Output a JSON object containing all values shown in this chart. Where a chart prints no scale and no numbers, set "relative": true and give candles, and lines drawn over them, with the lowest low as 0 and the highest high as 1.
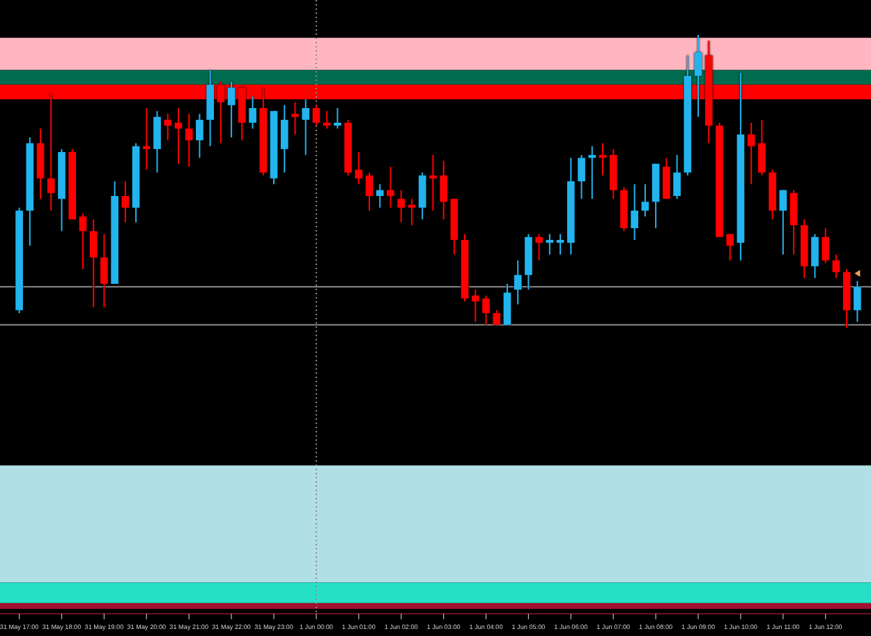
{
  "chart_data": {
    "type": "candlestick",
    "relative": true,
    "tick_labels": "x",
    "categories": [
      "31 May 17:00",
      null,
      null,
      null,
      "31 May 18:00",
      null,
      null,
      null,
      "31 May 19:00",
      null,
      null,
      null,
      "31 May 20:00",
      null,
      null,
      null,
      "31 May 21:00",
      null,
      null,
      null,
      "31 May 22:00",
      null,
      null,
      null,
      "31 May 23:00",
      null,
      null,
      null,
      "1 Jun 00:00",
      null,
      null,
      null,
      "1 Jun 01:00",
      null,
      null,
      null,
      "1 Jun 02:00",
      null,
      null,
      null,
      "1 Jun 03:00",
      null,
      null,
      null,
      "1 Jun 04:00",
      null,
      null,
      null,
      "1 Jun 05:00",
      null,
      null,
      null,
      "1 Jun 06:00",
      null,
      null,
      null,
      "1 Jun 07:00",
      null,
      null,
      null,
      "1 Jun 08:00",
      null,
      null,
      null,
      "1 Jun 09:00",
      null,
      null,
      null,
      "1 Jun 10:00",
      null,
      null,
      null,
      "1 Jun 11:00",
      null,
      null,
      null,
      "1 Jun 12:00",
      null,
      null,
      null
    ],
    "ohlc": [
      [
        0.06,
        0.41,
        0.05,
        0.4
      ],
      [
        0.4,
        0.65,
        0.28,
        0.63
      ],
      [
        0.63,
        0.68,
        0.44,
        0.51
      ],
      [
        0.51,
        0.8,
        0.4,
        0.46
      ],
      [
        0.44,
        0.61,
        0.33,
        0.6
      ],
      [
        0.6,
        0.61,
        0.37,
        0.37
      ],
      [
        0.38,
        0.39,
        0.2,
        0.33
      ],
      [
        0.33,
        0.37,
        0.07,
        0.24
      ],
      [
        0.24,
        0.32,
        0.07,
        0.15
      ],
      [
        0.15,
        0.5,
        0.15,
        0.45
      ],
      [
        0.45,
        0.5,
        0.36,
        0.41
      ],
      [
        0.41,
        0.63,
        0.36,
        0.62
      ],
      [
        0.62,
        0.75,
        0.54,
        0.61
      ],
      [
        0.61,
        0.74,
        0.53,
        0.72
      ],
      [
        0.71,
        0.73,
        0.64,
        0.69
      ],
      [
        0.7,
        0.75,
        0.56,
        0.68
      ],
      [
        0.68,
        0.73,
        0.55,
        0.64
      ],
      [
        0.64,
        0.73,
        0.58,
        0.71
      ],
      [
        0.71,
        0.88,
        0.62,
        0.83
      ],
      [
        0.83,
        0.84,
        0.63,
        0.77
      ],
      [
        0.76,
        0.84,
        0.65,
        0.82
      ],
      [
        0.82,
        0.82,
        0.64,
        0.7
      ],
      [
        0.7,
        0.79,
        0.68,
        0.75
      ],
      [
        0.75,
        0.82,
        0.52,
        0.53
      ],
      [
        0.51,
        0.74,
        0.49,
        0.74
      ],
      [
        0.61,
        0.76,
        0.53,
        0.71
      ],
      [
        0.73,
        0.77,
        0.66,
        0.72
      ],
      [
        0.71,
        0.78,
        0.59,
        0.75
      ],
      [
        0.75,
        0.76,
        0.69,
        0.7
      ],
      [
        0.7,
        0.74,
        0.68,
        0.69
      ],
      [
        0.69,
        0.75,
        0.68,
        0.7
      ],
      [
        0.7,
        0.71,
        0.52,
        0.53
      ],
      [
        0.54,
        0.6,
        0.49,
        0.51
      ],
      [
        0.52,
        0.53,
        0.4,
        0.45
      ],
      [
        0.45,
        0.49,
        0.41,
        0.47
      ],
      [
        0.47,
        0.55,
        0.41,
        0.45
      ],
      [
        0.44,
        0.47,
        0.36,
        0.41
      ],
      [
        0.42,
        0.44,
        0.35,
        0.41
      ],
      [
        0.41,
        0.53,
        0.37,
        0.52
      ],
      [
        0.52,
        0.59,
        0.4,
        0.51
      ],
      [
        0.52,
        0.57,
        0.37,
        0.43
      ],
      [
        0.44,
        0.44,
        0.25,
        0.3
      ],
      [
        0.3,
        0.32,
        0.09,
        0.1
      ],
      [
        0.11,
        0.13,
        0.02,
        0.09
      ],
      [
        0.1,
        0.11,
        0.01,
        0.05
      ],
      [
        0.05,
        0.06,
        0.01,
        0.01
      ],
      [
        0.01,
        0.15,
        0.01,
        0.12
      ],
      [
        0.13,
        0.23,
        0.08,
        0.18
      ],
      [
        0.18,
        0.32,
        0.13,
        0.31
      ],
      [
        0.31,
        0.32,
        0.23,
        0.29
      ],
      [
        0.29,
        0.32,
        0.25,
        0.3
      ],
      [
        0.29,
        0.32,
        0.25,
        0.3
      ],
      [
        0.29,
        0.58,
        0.25,
        0.5
      ],
      [
        0.5,
        0.59,
        0.44,
        0.58
      ],
      [
        0.58,
        0.62,
        0.44,
        0.59
      ],
      [
        0.59,
        0.63,
        0.52,
        0.58
      ],
      [
        0.59,
        0.61,
        0.44,
        0.47
      ],
      [
        0.47,
        0.48,
        0.33,
        0.34
      ],
      [
        0.34,
        0.49,
        0.3,
        0.4
      ],
      [
        0.4,
        0.49,
        0.38,
        0.43
      ],
      [
        0.43,
        0.56,
        0.34,
        0.56
      ],
      [
        0.55,
        0.58,
        0.44,
        0.44
      ],
      [
        0.45,
        0.59,
        0.44,
        0.53
      ],
      [
        0.53,
        0.93,
        0.52,
        0.86
      ],
      [
        0.86,
        1.0,
        0.72,
        0.94
      ],
      [
        0.93,
        0.98,
        0.63,
        0.69
      ],
      [
        0.69,
        0.7,
        0.31,
        0.31
      ],
      [
        0.32,
        0.32,
        0.23,
        0.28
      ],
      [
        0.29,
        0.87,
        0.23,
        0.66
      ],
      [
        0.66,
        0.7,
        0.49,
        0.62
      ],
      [
        0.63,
        0.71,
        0.52,
        0.53
      ],
      [
        0.53,
        0.54,
        0.37,
        0.4
      ],
      [
        0.4,
        0.47,
        0.25,
        0.47
      ],
      [
        0.46,
        0.47,
        0.25,
        0.35
      ],
      [
        0.35,
        0.37,
        0.17,
        0.21
      ],
      [
        0.21,
        0.32,
        0.17,
        0.31
      ],
      [
        0.31,
        0.34,
        0.22,
        0.23
      ],
      [
        0.23,
        0.25,
        0.17,
        0.19
      ],
      [
        0.19,
        0.2,
        0.0,
        0.06
      ],
      [
        0.06,
        0.16,
        0.02,
        0.14
      ]
    ],
    "colors": [
      "#22b4ee",
      "#22b4ee",
      "#ff0000",
      "#ff0000",
      "#22b4ee",
      "#ff0000",
      "#ff0000",
      "#ff0000",
      "#ff0000",
      "#22b4ee",
      "#ff0000",
      "#22b4ee",
      "#ff0000",
      "#22b4ee",
      "#ff0000",
      "#ff0000",
      "#ff0000",
      "#22b4ee",
      "#22b4ee",
      "#ff0000",
      "#22b4ee",
      "#ff0000",
      "#22b4ee",
      "#ff0000",
      "#22b4ee",
      "#22b4ee",
      "#ff0000",
      "#22b4ee",
      "#ff0000",
      "#ff0000",
      "#22b4ee",
      "#ff0000",
      "#ff0000",
      "#ff0000",
      "#22b4ee",
      "#ff0000",
      "#ff0000",
      "#ff0000",
      "#22b4ee",
      "#ff0000",
      "#ff0000",
      "#ff0000",
      "#ff0000",
      "#ff0000",
      "#ff0000",
      "#ff0000",
      "#22b4ee",
      "#22b4ee",
      "#22b4ee",
      "#ff0000",
      "#22b4ee",
      "#22b4ee",
      "#22b4ee",
      "#22b4ee",
      "#22b4ee",
      "#ff0000",
      "#ff0000",
      "#ff0000",
      "#22b4ee",
      "#22b4ee",
      "#22b4ee",
      "#ff0000",
      "#22b4ee",
      "#22b4ee",
      "#22b4ee",
      "#ff0000",
      "#ff0000",
      "#ff0000",
      "#22b4ee",
      "#ff0000",
      "#ff0000",
      "#ff0000",
      "#22b4ee",
      "#ff0000",
      "#ff0000",
      "#22b4ee",
      "#ff0000",
      "#ff0000",
      "#ff0000",
      "#22b4ee"
    ],
    "bands": [
      {
        "axis": "y",
        "from": 0.88,
        "to": 0.99,
        "color": "#ffb6c1"
      },
      {
        "axis": "y",
        "from": 0.83,
        "to": 0.88,
        "color": "#006b4f"
      },
      {
        "axis": "y",
        "from": 0.78,
        "to": 0.83,
        "color": "#ff0000"
      },
      {
        "axis": "y",
        "from": -0.87,
        "to": -0.47,
        "color": "#b0e0e6"
      },
      {
        "axis": "y",
        "from": -0.94,
        "to": -0.87,
        "color": "#26e0c6"
      },
      {
        "axis": "y",
        "from": -0.96,
        "to": -0.94,
        "color": "#a01030"
      }
    ],
    "ref_lines": [
      {
        "axis": "y",
        "value": 0.14,
        "color": "#8c8c8c",
        "line_style": "solid"
      },
      {
        "axis": "y",
        "value": 0.01,
        "color": "#8c8c8c",
        "line_style": "solid"
      },
      {
        "axis": "x",
        "value": "1 Jun 00:00",
        "color": "#8c8c8c",
        "line_style": "dotted"
      }
    ]
  }
}
